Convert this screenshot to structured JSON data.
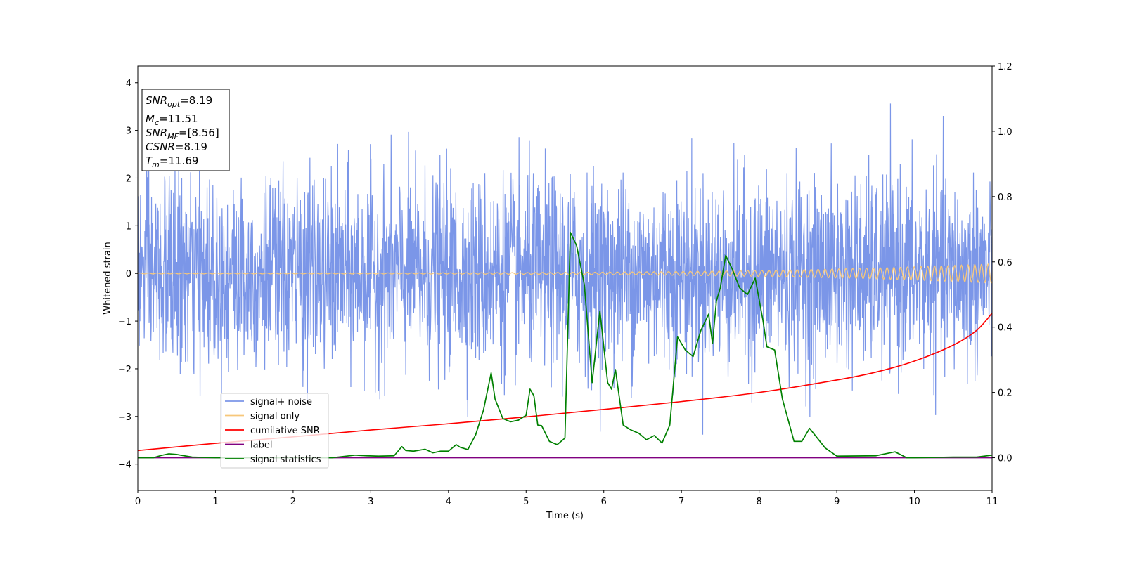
{
  "chart_data": {
    "type": "line",
    "xlabel": "Time (s)",
    "ylabel": "Whitened strain",
    "xlim": [
      0,
      11
    ],
    "ylim_left": [
      -4.55,
      4.35
    ],
    "ylim_right": [
      -0.1,
      1.2
    ],
    "x_ticks": [
      "0",
      "1",
      "2",
      "3",
      "4",
      "5",
      "6",
      "7",
      "8",
      "9",
      "10",
      "11"
    ],
    "y_ticks_left": [
      "4",
      "3",
      "2",
      "1",
      "0",
      "−1",
      "−2",
      "−3",
      "−4"
    ],
    "y_ticks_left_values": [
      4,
      3,
      2,
      1,
      0,
      -1,
      -2,
      -3,
      -4
    ],
    "y_ticks_right": [
      "1.2",
      "1.0",
      "0.8",
      "0.6",
      "0.4",
      "0.2",
      "0.0"
    ],
    "y_ticks_right_values": [
      1.2,
      1.0,
      0.8,
      0.6,
      0.4,
      0.2,
      0.0
    ],
    "stats_box": {
      "snr_opt": {
        "base": "SNR",
        "sub": "opt",
        "value": "=8.19"
      },
      "mc": {
        "base": "M",
        "sub": "c",
        "value": "=11.51"
      },
      "snr_mf": {
        "base": "SNR",
        "sub": "MF",
        "value": "=[8.56]"
      },
      "csnr": {
        "base": "CSNR",
        "sub": "",
        "value": "=8.19"
      },
      "tm": {
        "base": "T",
        "sub": "m",
        "value": "=11.69"
      }
    },
    "legend": {
      "placement": "lower-left",
      "entries": [
        {
          "label": "signal+ noise",
          "color": "#7b96e8"
        },
        {
          "label": "signal only",
          "color": "#f7c77a"
        },
        {
          "label": "cumilative SNR",
          "color": "#ff0000"
        },
        {
          "label": "label",
          "color": "#800080"
        },
        {
          "label": "signal statistics",
          "color": "#008000"
        }
      ]
    },
    "series": [
      {
        "name": "signal+ noise",
        "axis": "left",
        "color": "#7b96e8",
        "description_std": 1.0,
        "n_points": 2800,
        "approx_range": [
          -4.2,
          4.0
        ]
      },
      {
        "name": "signal only",
        "axis": "left",
        "color": "#f7c77a",
        "amplitude_start": 0.01,
        "amplitude_end": 0.2,
        "cycles_per_s": 9
      },
      {
        "name": "cumilative SNR",
        "axis": "right",
        "color": "#ff0000",
        "x": [
          0,
          1,
          2,
          3,
          4,
          5,
          6,
          7,
          8,
          9,
          9.5,
          10,
          10.5,
          10.8,
          11
        ],
        "y": [
          0.022,
          0.044,
          0.064,
          0.085,
          0.104,
          0.125,
          0.148,
          0.172,
          0.2,
          0.238,
          0.262,
          0.296,
          0.345,
          0.39,
          0.443
        ]
      },
      {
        "name": "label",
        "axis": "right",
        "color": "#800080",
        "x": [
          0,
          11
        ],
        "y": [
          0,
          0
        ]
      },
      {
        "name": "signal statistics",
        "axis": "right",
        "color": "#008000",
        "x": [
          0,
          0.2,
          0.3,
          0.4,
          0.5,
          0.7,
          1.0,
          1.5,
          2.0,
          2.5,
          2.8,
          2.95,
          3.1,
          3.3,
          3.4,
          3.45,
          3.55,
          3.7,
          3.8,
          3.9,
          4.0,
          4.1,
          4.15,
          4.25,
          4.35,
          4.45,
          4.55,
          4.6,
          4.7,
          4.8,
          4.9,
          5.0,
          5.05,
          5.1,
          5.15,
          5.2,
          5.3,
          5.4,
          5.5,
          5.57,
          5.65,
          5.75,
          5.85,
          5.95,
          6.05,
          6.1,
          6.15,
          6.25,
          6.35,
          6.45,
          6.55,
          6.65,
          6.75,
          6.85,
          6.95,
          7.05,
          7.15,
          7.25,
          7.35,
          7.4,
          7.45,
          7.5,
          7.57,
          7.65,
          7.75,
          7.85,
          7.95,
          8.05,
          8.1,
          8.2,
          8.3,
          8.45,
          8.55,
          8.65,
          8.75,
          8.85,
          9.0,
          9.5,
          9.75,
          9.9,
          10.0,
          10.5,
          10.8,
          11.0
        ],
        "y": [
          0.0,
          0.0,
          0.007,
          0.012,
          0.01,
          0.002,
          0.0,
          0.0,
          0.0,
          0.0,
          0.008,
          0.006,
          0.005,
          0.006,
          0.034,
          0.022,
          0.02,
          0.026,
          0.015,
          0.02,
          0.02,
          0.04,
          0.032,
          0.025,
          0.07,
          0.145,
          0.26,
          0.18,
          0.12,
          0.11,
          0.115,
          0.13,
          0.21,
          0.19,
          0.1,
          0.098,
          0.05,
          0.04,
          0.06,
          0.69,
          0.65,
          0.53,
          0.23,
          0.45,
          0.23,
          0.21,
          0.27,
          0.1,
          0.085,
          0.075,
          0.055,
          0.068,
          0.045,
          0.1,
          0.37,
          0.33,
          0.31,
          0.39,
          0.44,
          0.35,
          0.48,
          0.52,
          0.62,
          0.58,
          0.52,
          0.5,
          0.55,
          0.42,
          0.34,
          0.33,
          0.18,
          0.05,
          0.05,
          0.09,
          0.06,
          0.03,
          0.005,
          0.006,
          0.018,
          0.0,
          0.0,
          0.002,
          0.002,
          0.008
        ]
      }
    ]
  }
}
